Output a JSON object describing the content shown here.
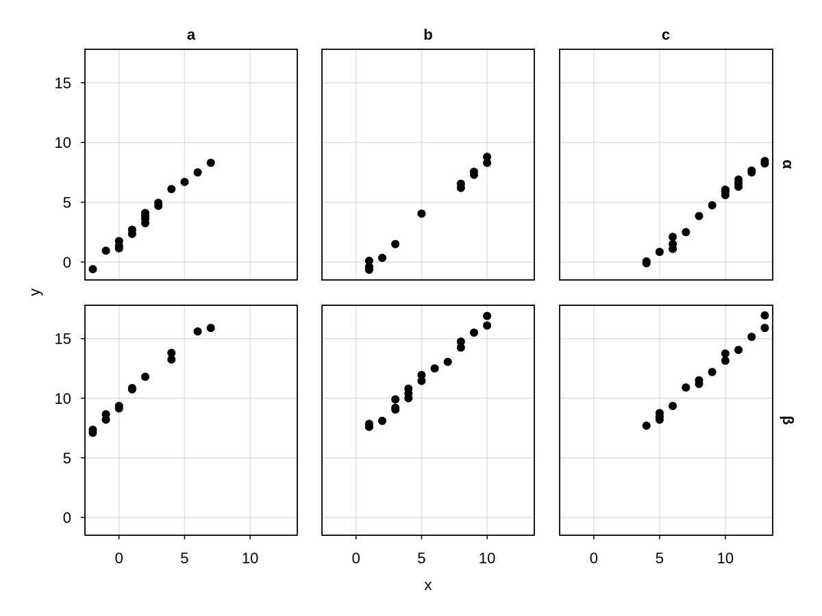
{
  "chart_data": {
    "type": "scatter",
    "xlabel": "x",
    "ylabel": "y",
    "col_titles": [
      "a",
      "b",
      "c"
    ],
    "row_titles": [
      "α",
      "β"
    ],
    "xlim": [
      -2.6,
      13.6
    ],
    "ylim": [
      -1.5,
      17.8
    ],
    "xticks": [
      0,
      5,
      10
    ],
    "yticks": [
      0,
      5,
      10,
      15
    ],
    "grid": true,
    "marker_color": "#000000",
    "panels": [
      {
        "row": 0,
        "col": 0,
        "x": [
          -2,
          -1,
          0,
          0,
          0,
          1,
          1,
          2,
          2,
          2,
          2,
          3,
          3,
          4,
          5,
          6,
          7
        ],
        "y": [
          -0.6,
          0.95,
          1.15,
          1.35,
          1.75,
          2.35,
          2.7,
          3.25,
          3.6,
          3.85,
          4.1,
          4.7,
          4.95,
          6.1,
          6.7,
          7.5,
          8.3
        ]
      },
      {
        "row": 0,
        "col": 1,
        "x": [
          1,
          1,
          1,
          2,
          3,
          5,
          8,
          8,
          9,
          9,
          10,
          10
        ],
        "y": [
          -0.65,
          -0.4,
          0.1,
          0.35,
          1.5,
          4.05,
          6.2,
          6.55,
          7.3,
          7.55,
          8.3,
          8.8
        ]
      },
      {
        "row": 0,
        "col": 2,
        "x": [
          4,
          4,
          5,
          6,
          6,
          6,
          7,
          8,
          9,
          10,
          10,
          10,
          11,
          11,
          11,
          12,
          12,
          13,
          13
        ],
        "y": [
          -0.1,
          0.05,
          0.85,
          1.1,
          1.5,
          2.1,
          2.5,
          3.85,
          4.75,
          5.6,
          5.9,
          6.05,
          6.3,
          6.6,
          6.9,
          7.5,
          7.65,
          8.25,
          8.45
        ]
      },
      {
        "row": 1,
        "col": 0,
        "x": [
          -2,
          -2,
          -1,
          -1,
          0,
          0,
          1,
          1,
          2,
          4,
          4,
          6,
          7
        ],
        "y": [
          7.1,
          7.35,
          8.2,
          8.65,
          9.15,
          9.35,
          10.75,
          10.85,
          11.8,
          13.25,
          13.8,
          15.6,
          15.9
        ]
      },
      {
        "row": 1,
        "col": 1,
        "x": [
          1,
          1,
          2,
          3,
          3,
          3,
          4,
          4,
          4,
          5,
          5,
          6,
          7,
          8,
          8,
          9,
          10,
          10
        ],
        "y": [
          7.6,
          7.85,
          8.1,
          9.05,
          9.2,
          9.9,
          10.0,
          10.4,
          10.8,
          11.45,
          11.95,
          12.5,
          13.05,
          14.25,
          14.75,
          15.5,
          16.1,
          16.9
        ]
      },
      {
        "row": 1,
        "col": 2,
        "x": [
          4,
          5,
          5,
          5,
          6,
          7,
          8,
          8,
          9,
          10,
          10,
          11,
          12,
          13,
          13
        ],
        "y": [
          7.7,
          8.2,
          8.45,
          8.75,
          9.35,
          10.9,
          11.2,
          11.5,
          12.2,
          13.15,
          13.75,
          14.05,
          15.15,
          15.9,
          16.95
        ]
      }
    ]
  }
}
